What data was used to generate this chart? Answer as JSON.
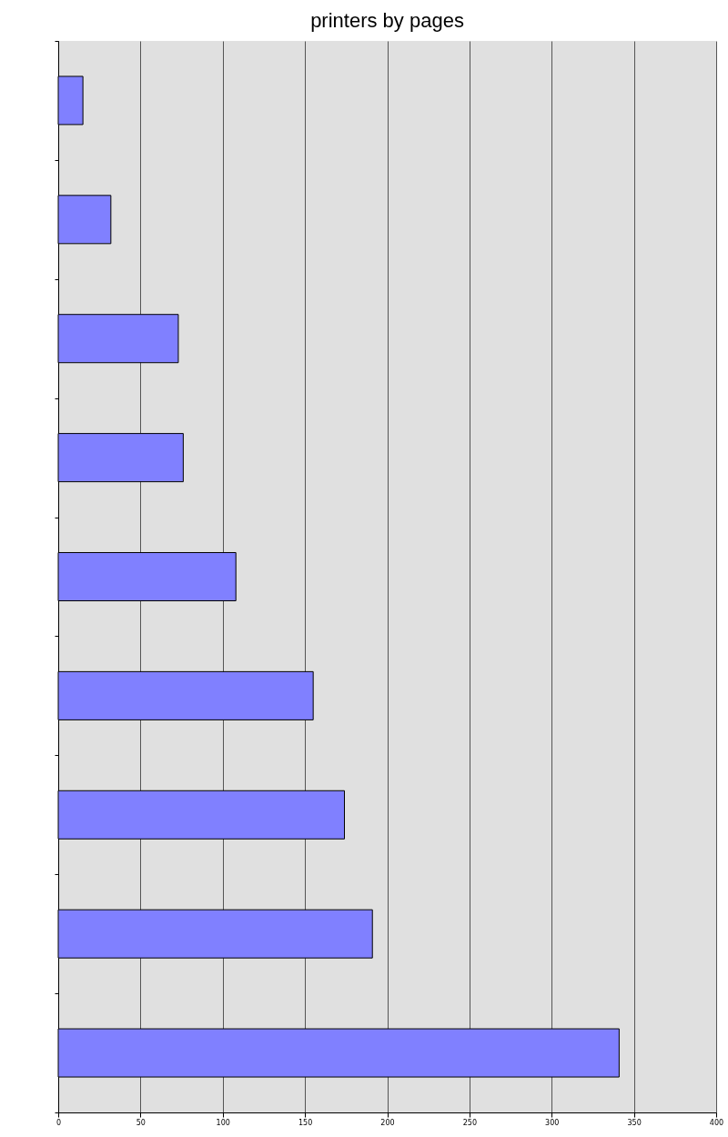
{
  "chart_data": {
    "type": "bar",
    "title": "printers by pages",
    "orientation": "horizontal",
    "categories": [
      null,
      null,
      null,
      null,
      null,
      null,
      null,
      null,
      null
    ],
    "values": [
      15,
      32,
      73,
      76,
      108,
      155,
      174,
      191,
      341
    ],
    "color": "#8080ff",
    "xlim": [
      0,
      400
    ],
    "xticks": [
      0,
      50,
      100,
      150,
      200,
      250,
      300,
      350,
      400
    ],
    "grid": "x",
    "tick_labels": "x"
  }
}
